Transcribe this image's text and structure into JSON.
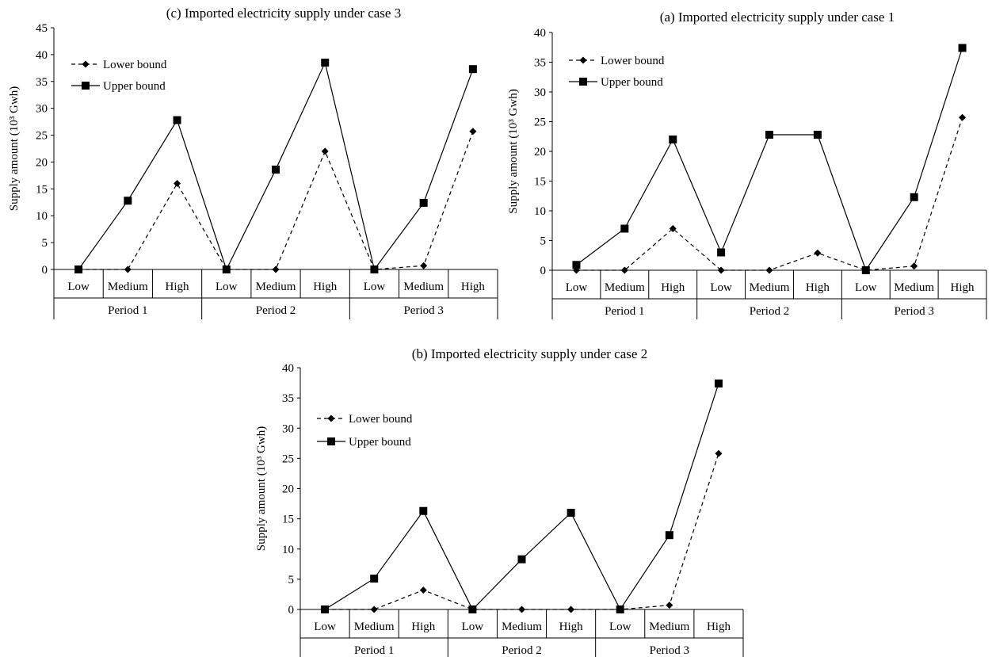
{
  "chart_data": [
    {
      "type": "line",
      "title": "(c) Imported electricity supply under case 3",
      "ylabel": "Supply amount (10³ Gwh)",
      "ylim": [
        0,
        45
      ],
      "yticks": [
        0,
        5,
        10,
        15,
        20,
        25,
        30,
        35,
        40,
        45
      ],
      "categories": [
        "Low",
        "Medium",
        "High",
        "Low",
        "Medium",
        "High",
        "Low",
        "Medium",
        "High"
      ],
      "groups": [
        "Period 1",
        "Period 2",
        "Period 3"
      ],
      "legend_position": "top-left",
      "series": [
        {
          "name": "Lower bound",
          "style": "dashed",
          "marker": "diamond",
          "values": [
            0,
            0,
            16,
            0,
            0,
            22,
            0,
            0.7,
            25.7
          ]
        },
        {
          "name": "Upper bound",
          "style": "solid",
          "marker": "square",
          "values": [
            0,
            12.8,
            27.8,
            0,
            18.6,
            38.5,
            0,
            12.4,
            37.3
          ]
        }
      ]
    },
    {
      "type": "line",
      "title": "(a) Imported electricity supply under case 1",
      "ylabel": "Supply amount (10³ Gwh)",
      "ylim": [
        0,
        40
      ],
      "yticks": [
        0,
        5,
        10,
        15,
        20,
        25,
        30,
        35,
        40
      ],
      "categories": [
        "Low",
        "Medium",
        "High",
        "Low",
        "Medium",
        "High",
        "Low",
        "Medium",
        "High"
      ],
      "groups": [
        "Period 1",
        "Period 2",
        "Period 3"
      ],
      "legend_position": "top-left",
      "series": [
        {
          "name": "Lower bound",
          "style": "dashed",
          "marker": "diamond",
          "values": [
            0,
            0,
            7,
            0,
            0,
            2.9,
            0,
            0.7,
            25.7
          ]
        },
        {
          "name": "Upper bound",
          "style": "solid",
          "marker": "square",
          "values": [
            0.9,
            7,
            22,
            3,
            22.8,
            22.8,
            0,
            12.3,
            37.4
          ]
        }
      ]
    },
    {
      "type": "line",
      "title": "(b) Imported electricity supply under case 2",
      "ylabel": "Supply amount (10³ Gwh)",
      "ylim": [
        0,
        40
      ],
      "yticks": [
        0,
        5,
        10,
        15,
        20,
        25,
        30,
        35,
        40
      ],
      "categories": [
        "Low",
        "Medium",
        "High",
        "Low",
        "Medium",
        "High",
        "Low",
        "Medium",
        "High"
      ],
      "groups": [
        "Period 1",
        "Period 2",
        "Period 3"
      ],
      "legend_position": "top-left",
      "series": [
        {
          "name": "Lower bound",
          "style": "dashed",
          "marker": "diamond",
          "values": [
            0,
            0,
            3.2,
            0,
            0,
            0,
            0,
            0.7,
            25.8
          ]
        },
        {
          "name": "Upper bound",
          "style": "solid",
          "marker": "square",
          "values": [
            0,
            5.1,
            16.3,
            0,
            8.3,
            16,
            0,
            12.3,
            37.4
          ]
        }
      ]
    }
  ]
}
